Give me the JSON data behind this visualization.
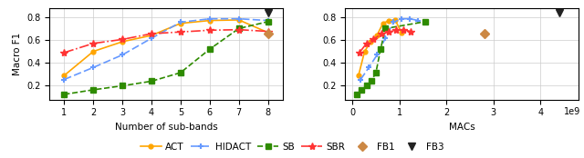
{
  "left": {
    "ACT_x": [
      1,
      2,
      3,
      4,
      5,
      6,
      7,
      8
    ],
    "ACT_y": [
      0.29,
      0.5,
      0.585,
      0.64,
      0.745,
      0.77,
      0.775,
      0.665
    ],
    "HIDACT_x": [
      1,
      2,
      3,
      4,
      5,
      6,
      7,
      8
    ],
    "HIDACT_y": [
      0.255,
      0.36,
      0.47,
      0.615,
      0.755,
      0.785,
      0.785,
      0.77
    ],
    "SB_x": [
      1,
      2,
      3,
      4,
      5,
      6,
      7,
      8
    ],
    "SB_y": [
      0.125,
      0.165,
      0.2,
      0.24,
      0.315,
      0.52,
      0.7,
      0.76
    ],
    "SBR_x": [
      1,
      2,
      3,
      4,
      5,
      6,
      7,
      8
    ],
    "SBR_y": [
      0.49,
      0.57,
      0.605,
      0.655,
      0.67,
      0.685,
      0.69,
      0.675
    ],
    "FB1_x": [
      8
    ],
    "FB1_y": [
      0.655
    ],
    "FB3_x": [
      8
    ],
    "FB3_y": [
      0.835
    ],
    "xlabel": "Number of sub-bands",
    "ylabel": "Macro F1",
    "xlim": [
      0.5,
      8.5
    ],
    "ylim": [
      0.08,
      0.88
    ],
    "yticks": [
      0.2,
      0.4,
      0.6,
      0.8
    ],
    "xticks": [
      1,
      2,
      3,
      4,
      5,
      6,
      7,
      8
    ]
  },
  "right": {
    "ACT_x": [
      0.13,
      0.26,
      0.39,
      0.52,
      0.65,
      0.78,
      0.91,
      1.04
    ],
    "ACT_y": [
      0.29,
      0.5,
      0.585,
      0.64,
      0.745,
      0.77,
      0.775,
      0.665
    ],
    "HIDACT_x": [
      0.175,
      0.35,
      0.525,
      0.7,
      0.875,
      1.05,
      1.225,
      1.4
    ],
    "HIDACT_y": [
      0.255,
      0.36,
      0.47,
      0.615,
      0.755,
      0.785,
      0.785,
      0.77
    ],
    "SB_x": [
      0.1,
      0.2,
      0.3,
      0.4,
      0.5,
      0.6,
      0.7,
      1.55
    ],
    "SB_y": [
      0.125,
      0.165,
      0.2,
      0.24,
      0.315,
      0.52,
      0.7,
      0.76
    ],
    "SBR_x": [
      0.15,
      0.3,
      0.45,
      0.62,
      0.78,
      0.93,
      1.08,
      1.23
    ],
    "SBR_y": [
      0.49,
      0.57,
      0.605,
      0.655,
      0.67,
      0.685,
      0.69,
      0.675
    ],
    "FB1_x": [
      2.8
    ],
    "FB1_y": [
      0.655
    ],
    "FB3_x": [
      4.4
    ],
    "FB3_y": [
      0.835
    ],
    "xlabel": "MACs",
    "ylabel": "",
    "xlim": [
      -0.15,
      4.8
    ],
    "ylim": [
      0.08,
      0.88
    ],
    "yticks": [
      0.2,
      0.4,
      0.6,
      0.8
    ],
    "xticks": [
      0,
      1,
      2,
      3,
      4
    ],
    "exp_label": "1e9"
  },
  "colors": {
    "ACT": "#FFA500",
    "HIDACT": "#6699FF",
    "SB": "#2E8B00",
    "SBR": "#FF3333",
    "FB1": "#CC8844",
    "FB3": "#222222"
  }
}
